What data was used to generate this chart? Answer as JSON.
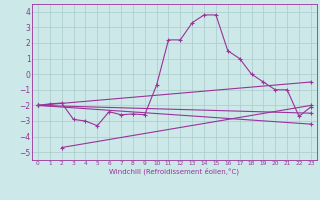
{
  "xlabel": "Windchill (Refroidissement éolien,°C)",
  "xlim": [
    -0.5,
    23.5
  ],
  "ylim": [
    -5.5,
    4.5
  ],
  "yticks": [
    -5,
    -4,
    -3,
    -2,
    -1,
    0,
    1,
    2,
    3,
    4
  ],
  "xticks": [
    0,
    1,
    2,
    3,
    4,
    5,
    6,
    7,
    8,
    9,
    10,
    11,
    12,
    13,
    14,
    15,
    16,
    17,
    18,
    19,
    20,
    21,
    22,
    23
  ],
  "background_color": "#cce8e8",
  "grid_color": "#aacccc",
  "line_color": "#993399",
  "line_width": 0.8,
  "marker": "+",
  "marker_size": 3,
  "curves": [
    {
      "x": [
        0,
        1,
        2,
        3,
        4,
        5,
        6,
        7,
        8,
        9,
        10,
        11,
        12,
        13,
        14,
        15,
        16,
        17,
        18,
        19,
        20,
        21,
        22,
        23
      ],
      "y": [
        -2.0,
        -1.9,
        -1.85,
        -2.9,
        -3.0,
        -3.3,
        -2.4,
        -2.6,
        -2.55,
        -2.6,
        -0.7,
        2.2,
        2.2,
        3.3,
        3.8,
        3.8,
        1.5,
        1.0,
        0.0,
        -0.5,
        -1.0,
        -1.0,
        -2.7,
        -2.1
      ]
    },
    {
      "x": [
        0,
        23
      ],
      "y": [
        -2.0,
        -0.5
      ]
    },
    {
      "x": [
        0,
        23
      ],
      "y": [
        -2.0,
        -2.5
      ]
    },
    {
      "x": [
        0,
        23
      ],
      "y": [
        -2.0,
        -3.2
      ]
    },
    {
      "x": [
        2,
        23
      ],
      "y": [
        -4.7,
        -2.0
      ]
    }
  ]
}
